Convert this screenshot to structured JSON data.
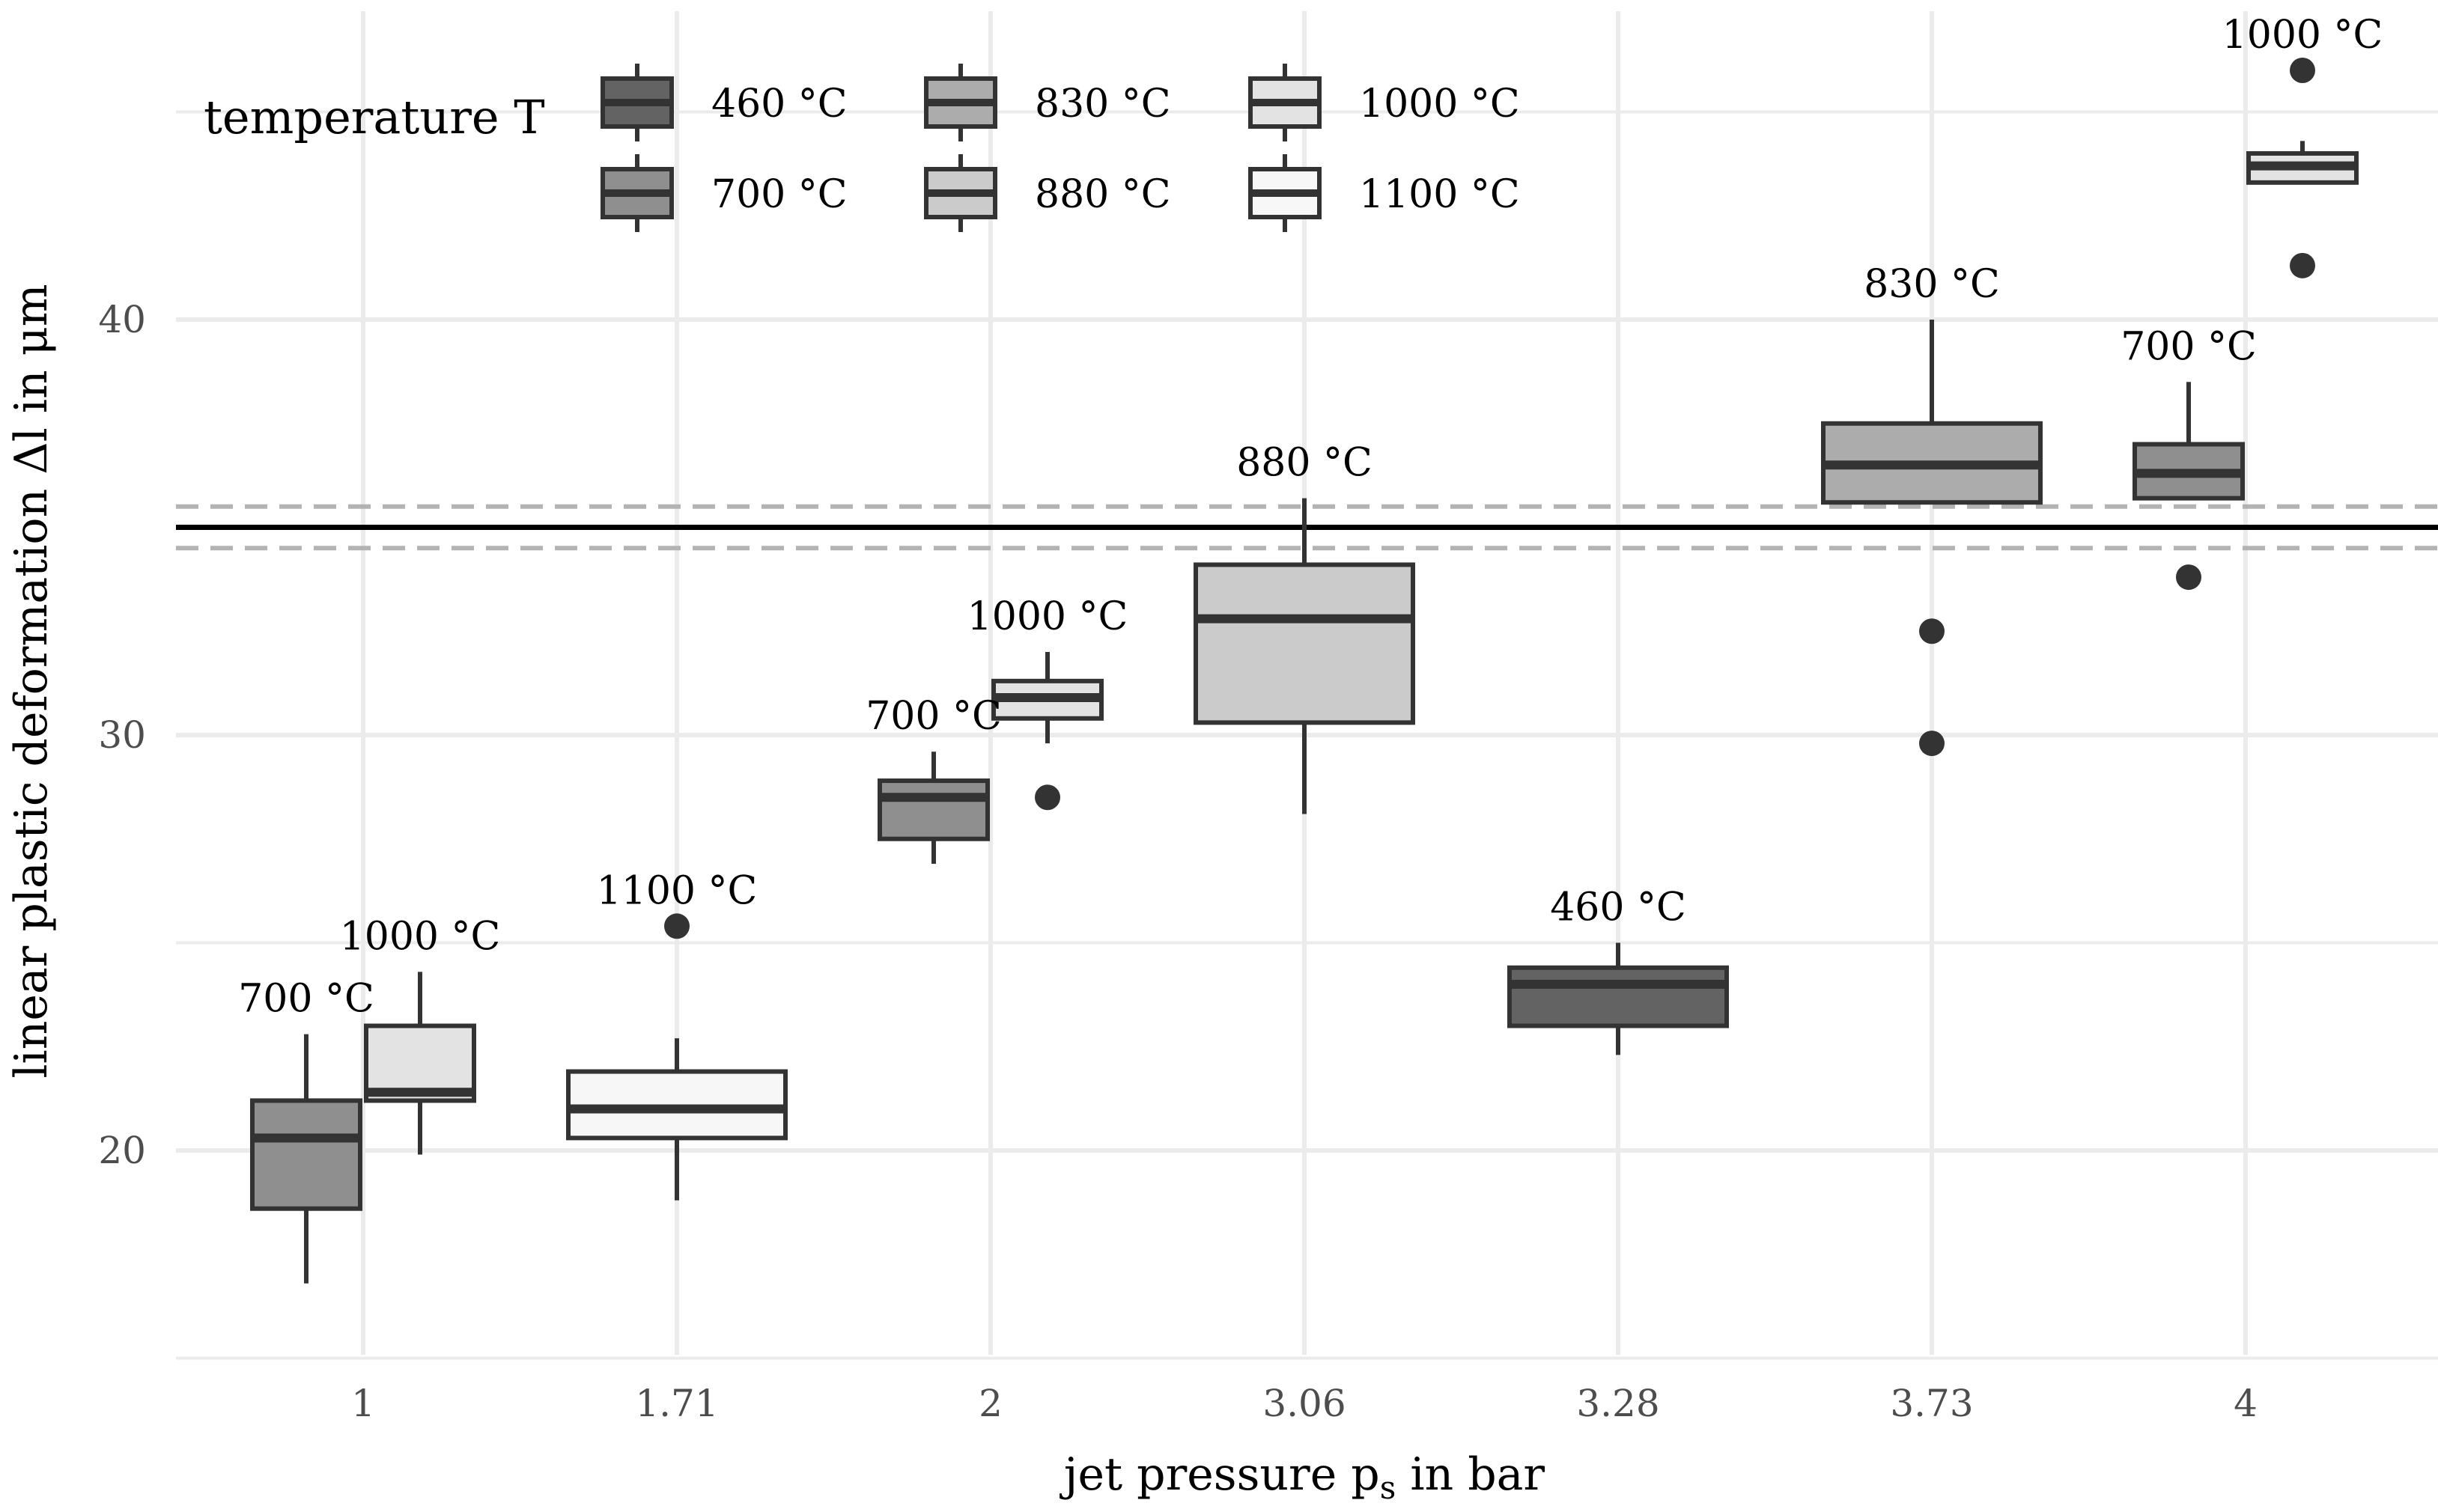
{
  "chart_data": {
    "type": "boxplot",
    "xlabel": "jet pressure p_s in bar",
    "xlabel_main": "jet pressure p",
    "xlabel_sub": "s",
    "xlabel_rest": " in bar",
    "ylabel": "linear plastic deformation Δl in μm",
    "ylim": [
      15,
      47.5
    ],
    "y_ticks": [
      20,
      30,
      40
    ],
    "x_categories": [
      "1",
      "1.71",
      "2",
      "3.06",
      "3.28",
      "3.73",
      "4"
    ],
    "reference_lines": [
      {
        "value": 35.0,
        "style": "solid",
        "color": "#000000"
      },
      {
        "value": 35.5,
        "style": "dashed",
        "color": "#b3b3b3"
      },
      {
        "value": 34.5,
        "style": "dashed",
        "color": "#b3b3b3"
      }
    ],
    "legend": {
      "title": "temperature T",
      "position": "top-left",
      "entries": [
        {
          "label": "460 °C",
          "color": "#636363"
        },
        {
          "label": "700 °C",
          "color": "#8f8f8f"
        },
        {
          "label": "830 °C",
          "color": "#acacac"
        },
        {
          "label": "880 °C",
          "color": "#cbcbcb"
        },
        {
          "label": "1000 °C",
          "color": "#e3e3e3"
        },
        {
          "label": "1100 °C",
          "color": "#f7f7f7"
        }
      ]
    },
    "boxes": [
      {
        "category": "1",
        "dodge": -0.19,
        "temperature": "700 °C",
        "color": "#8f8f8f",
        "whisker_low": 16.8,
        "q1": 18.6,
        "median": 20.3,
        "q3": 21.2,
        "whisker_high": 22.8,
        "outliers": [],
        "label": "700 °C"
      },
      {
        "category": "1",
        "dodge": 0.19,
        "temperature": "1000 °C",
        "color": "#e3e3e3",
        "whisker_low": 19.9,
        "q1": 21.2,
        "median": 21.4,
        "q3": 23.0,
        "whisker_high": 24.3,
        "outliers": [],
        "label": "1000 °C"
      },
      {
        "category": "1.71",
        "dodge": 0,
        "temperature": "1100 °C",
        "color": "#f7f7f7",
        "whisker_low": 18.8,
        "q1": 20.3,
        "median": 21.0,
        "q3": 21.9,
        "whisker_high": 22.7,
        "outliers": [
          25.4
        ],
        "label": "1100 °C"
      },
      {
        "category": "2",
        "dodge": -0.19,
        "temperature": "700 °C",
        "color": "#8f8f8f",
        "whisker_low": 26.9,
        "q1": 27.5,
        "median": 28.5,
        "q3": 28.9,
        "whisker_high": 29.6,
        "outliers": [],
        "label": "700 °C"
      },
      {
        "category": "2",
        "dodge": 0.19,
        "temperature": "1000 °C",
        "color": "#e3e3e3",
        "whisker_low": 29.8,
        "q1": 30.4,
        "median": 30.9,
        "q3": 31.3,
        "whisker_high": 32.0,
        "outliers": [
          28.5
        ],
        "label": "1000 °C"
      },
      {
        "category": "3.06",
        "dodge": 0,
        "temperature": "880 °C",
        "color": "#cbcbcb",
        "whisker_low": 28.1,
        "q1": 30.3,
        "median": 32.8,
        "q3": 34.1,
        "whisker_high": 35.7,
        "outliers": [],
        "label": "880 °C"
      },
      {
        "category": "3.28",
        "dodge": 0,
        "temperature": "460 °C",
        "color": "#636363",
        "whisker_low": 22.3,
        "q1": 23.0,
        "median": 24.0,
        "q3": 24.4,
        "whisker_high": 25.0,
        "outliers": [],
        "label": "460 °C"
      },
      {
        "category": "3.73",
        "dodge": 0,
        "temperature": "830 °C",
        "color": "#acacac",
        "whisker_low": 35.6,
        "q1": 35.6,
        "median": 36.5,
        "q3": 37.5,
        "whisker_high": 40.0,
        "outliers": [
          32.5,
          29.8
        ],
        "label": "830 °C"
      },
      {
        "category": "4",
        "dodge": -0.19,
        "temperature": "700 °C",
        "color": "#8f8f8f",
        "whisker_low": 35.7,
        "q1": 35.7,
        "median": 36.3,
        "q3": 37.0,
        "whisker_high": 38.5,
        "outliers": [
          33.8
        ],
        "label": "700 °C"
      },
      {
        "category": "4",
        "dodge": 0.19,
        "temperature": "1000 °C",
        "color": "#e3e3e3",
        "whisker_low": 43.3,
        "q1": 43.3,
        "median": 43.7,
        "q3": 44.0,
        "whisker_high": 44.3,
        "outliers": [
          46.0,
          41.3
        ],
        "label": "1000 °C"
      }
    ]
  }
}
